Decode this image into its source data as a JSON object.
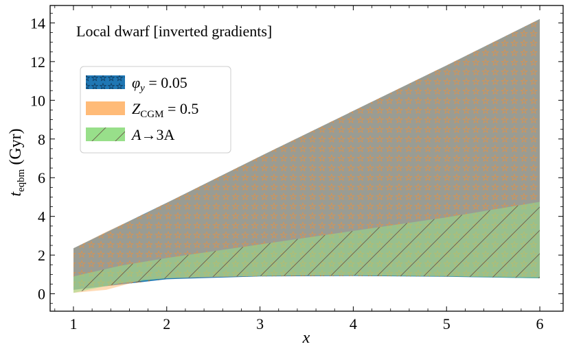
{
  "chart_data": {
    "type": "area",
    "title": "",
    "annotation": "Local dwarf [inverted gradients]",
    "xlabel": "x",
    "ylabel": "t_eqbm (Gyr)",
    "ylabel_main": "t",
    "ylabel_sub": "eqbm",
    "ylabel_unit": " (Gyr)",
    "xlim": [
      0.75,
      6.25
    ],
    "ylim": [
      -0.9,
      14.9
    ],
    "xticks": [
      1,
      2,
      3,
      4,
      5,
      6
    ],
    "yticks": [
      0,
      2,
      4,
      6,
      8,
      10,
      12,
      14
    ],
    "grid": false,
    "legend_position": "upper-left",
    "series": [
      {
        "name": "φ_y = 0.05",
        "legend_symbol": "φ",
        "legend_sub": "y",
        "legend_rest": " = 0.05",
        "color": "#1f77b4",
        "hatch": "stars",
        "x": [
          1,
          2,
          3,
          4,
          5,
          6
        ],
        "lower": [
          0.2,
          0.75,
          0.9,
          0.92,
          0.88,
          0.8
        ],
        "upper": [
          2.35,
          4.7,
          7.1,
          9.45,
          11.8,
          14.2
        ]
      },
      {
        "name": "Z_CGM = 0.5",
        "legend_symbol": "Z",
        "legend_sub": "CGM",
        "legend_rest": " = 0.5",
        "color": "#ffbb78",
        "hatch": "none",
        "x": [
          1,
          1.35,
          1.75,
          2,
          3,
          4,
          5,
          6
        ],
        "lower": [
          0.05,
          0.2,
          0.72,
          0.8,
          0.92,
          0.95,
          0.92,
          0.85
        ],
        "upper": [
          2.35,
          3.2,
          4.1,
          4.7,
          7.1,
          9.45,
          11.8,
          14.2
        ]
      },
      {
        "name": "A→3A",
        "legend_symbol": "A",
        "legend_rest": "→3A",
        "color": "#98df8a",
        "hatch": "diagonal",
        "x": [
          1,
          1.5,
          2,
          2.5,
          3,
          3.5,
          4,
          4.5,
          5,
          5.5,
          6
        ],
        "lower": [
          0.05,
          0.55,
          0.8,
          0.88,
          0.92,
          0.95,
          0.95,
          0.92,
          0.9,
          0.85,
          0.8
        ],
        "upper": [
          0.9,
          1.45,
          1.85,
          2.2,
          2.55,
          2.9,
          3.25,
          3.6,
          3.95,
          4.35,
          4.75
        ]
      }
    ]
  }
}
